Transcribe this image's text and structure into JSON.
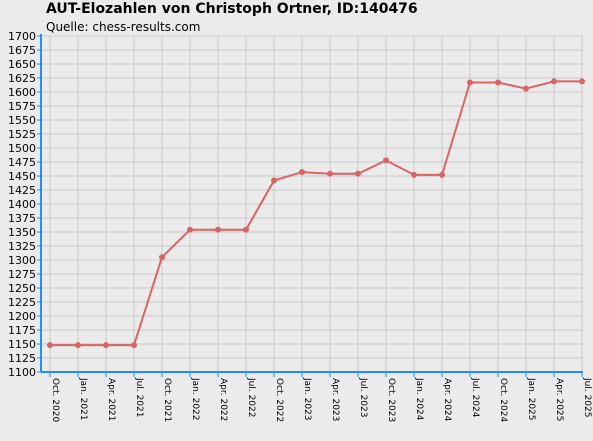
{
  "chart_data": {
    "type": "line",
    "title": "AUT-Elozahlen von Christoph Ortner, ID:140476",
    "subtitle": "Quelle: chess-results.com",
    "xlabel": "",
    "ylabel": "",
    "ylim": [
      1100,
      1700
    ],
    "ytick_step": 25,
    "grid": true,
    "legend": "none",
    "colors": {
      "line": "#d96464",
      "marker": "#d96464",
      "axis": "#1e90ff",
      "grid": "#c8c8c8",
      "background": "#ebebeb"
    },
    "categories": [
      "Oct. 2020",
      "Jan. 2021",
      "Apr. 2021",
      "Jul. 2021",
      "Oct. 2021",
      "Jan. 2022",
      "Apr. 2022",
      "Jul. 2022",
      "Oct. 2022",
      "Jan. 2023",
      "Apr. 2023",
      "Jul. 2023",
      "Oct. 2023",
      "Jan. 2024",
      "Apr. 2024",
      "Jul. 2024",
      "Oct. 2024",
      "Jan. 2025",
      "Apr. 2025",
      "Jul. 2025"
    ],
    "series": [
      {
        "values": [
          1148,
          1148,
          1148,
          1148,
          1305,
          1354,
          1354,
          1354,
          1442,
          1457,
          1454,
          1454,
          1478,
          1452,
          1452,
          1617,
          1617,
          1606,
          1619,
          1619
        ]
      }
    ]
  }
}
